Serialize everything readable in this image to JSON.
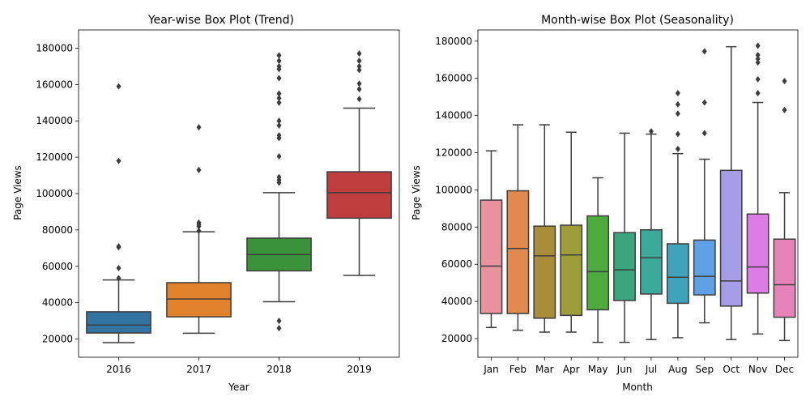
{
  "chart_data": [
    {
      "type": "box",
      "title": "Year-wise Box Plot (Trend)",
      "xlabel": "Year",
      "ylabel": "Page Views",
      "categories": [
        "2016",
        "2017",
        "2018",
        "2019"
      ],
      "ylim": [
        10000,
        190000
      ],
      "yticks": [
        20000,
        40000,
        60000,
        80000,
        100000,
        120000,
        140000,
        160000,
        180000
      ],
      "grid": false,
      "colors": [
        "#3274a1",
        "#e1812c",
        "#3a923a",
        "#c03d3e"
      ],
      "boxes": [
        {
          "category": "2016",
          "whisker_low": 18000,
          "q1": 23300,
          "median": 27700,
          "q3": 35000,
          "whisker_high": 52500,
          "fliers": [
            53500,
            59000,
            70500,
            71000,
            118000,
            159000
          ]
        },
        {
          "category": "2017",
          "whisker_low": 23200,
          "q1": 32200,
          "median": 42000,
          "q3": 51000,
          "whisker_high": 79000,
          "fliers": [
            79500,
            82000,
            83000,
            84000,
            113000,
            136500
          ]
        },
        {
          "category": "2018",
          "whisker_low": 40500,
          "q1": 57500,
          "median": 66500,
          "q3": 75500,
          "whisker_high": 100500,
          "fliers": [
            26000,
            30000,
            106000,
            107500,
            109000,
            120500,
            130500,
            132000,
            137500,
            140000,
            150000,
            152500,
            155000,
            163500,
            168500,
            170000,
            173000,
            176000
          ]
        },
        {
          "category": "2019",
          "whisker_low": 55000,
          "q1": 86500,
          "median": 100500,
          "q3": 112000,
          "whisker_high": 147000,
          "fliers": [
            152000,
            157500,
            160500,
            168000,
            170000,
            173000,
            177000
          ]
        }
      ]
    },
    {
      "type": "box",
      "title": "Month-wise Box Plot (Seasonality)",
      "xlabel": "Month",
      "ylabel": "Page Views",
      "categories": [
        "Jan",
        "Feb",
        "Mar",
        "Apr",
        "May",
        "Jun",
        "Jul",
        "Aug",
        "Sep",
        "Oct",
        "Nov",
        "Dec"
      ],
      "ylim": [
        10000,
        186000
      ],
      "yticks": [
        20000,
        40000,
        60000,
        80000,
        100000,
        120000,
        140000,
        160000,
        180000
      ],
      "grid": false,
      "colors": [
        "#e8939e",
        "#e08a4f",
        "#a88d3a",
        "#9d9d3a",
        "#4eac3e",
        "#3ba67e",
        "#3ca99b",
        "#3fa3bc",
        "#5fa1e6",
        "#a59de6",
        "#dd7ce6",
        "#e684b9"
      ],
      "boxes": [
        {
          "category": "Jan",
          "whisker_low": 26000,
          "q1": 33500,
          "median": 59000,
          "q3": 94500,
          "whisker_high": 121000,
          "fliers": []
        },
        {
          "category": "Feb",
          "whisker_low": 24500,
          "q1": 33500,
          "median": 68500,
          "q3": 99500,
          "whisker_high": 135000,
          "fliers": []
        },
        {
          "category": "Mar",
          "whisker_low": 23500,
          "q1": 31000,
          "median": 64500,
          "q3": 80500,
          "whisker_high": 135000,
          "fliers": []
        },
        {
          "category": "Apr",
          "whisker_low": 23500,
          "q1": 32500,
          "median": 65000,
          "q3": 81000,
          "whisker_high": 131000,
          "fliers": []
        },
        {
          "category": "May",
          "whisker_low": 18000,
          "q1": 35500,
          "median": 56000,
          "q3": 86000,
          "whisker_high": 106500,
          "fliers": []
        },
        {
          "category": "Jun",
          "whisker_low": 18000,
          "q1": 40500,
          "median": 57000,
          "q3": 77000,
          "whisker_high": 130500,
          "fliers": []
        },
        {
          "category": "Jul",
          "whisker_low": 19500,
          "q1": 44000,
          "median": 63500,
          "q3": 78500,
          "whisker_high": 130000,
          "fliers": [
            131500
          ]
        },
        {
          "category": "Aug",
          "whisker_low": 20500,
          "q1": 39000,
          "median": 53000,
          "q3": 71000,
          "whisker_high": 119500,
          "fliers": [
            122000,
            130000,
            141000,
            146000,
            152000
          ]
        },
        {
          "category": "Sep",
          "whisker_low": 28500,
          "q1": 43500,
          "median": 53500,
          "q3": 73000,
          "whisker_high": 116500,
          "fliers": [
            130500,
            147000,
            174500
          ]
        },
        {
          "category": "Oct",
          "whisker_low": 19500,
          "q1": 37500,
          "median": 51000,
          "q3": 110500,
          "whisker_high": 177000,
          "fliers": []
        },
        {
          "category": "Nov",
          "whisker_low": 22500,
          "q1": 44500,
          "median": 58500,
          "q3": 87000,
          "whisker_high": 147000,
          "fliers": [
            152000,
            159500,
            168500,
            170500,
            172500,
            177500
          ]
        },
        {
          "category": "Dec",
          "whisker_low": 19000,
          "q1": 31500,
          "median": 49000,
          "q3": 73500,
          "whisker_high": 98500,
          "fliers": [
            143000,
            158500
          ]
        }
      ]
    }
  ]
}
